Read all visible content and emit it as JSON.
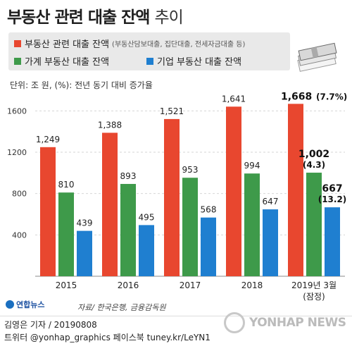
{
  "title": "부동산 관련 대출 잔액",
  "title_suffix": "추이",
  "unit_note": "단위: 조 원, (%): 전년 동기 대비 증가율",
  "legend": [
    {
      "label": "부동산 관련 대출 잔액",
      "note": "(부동산담보대출, 집단대출, 전세자금대출 등)",
      "color": "#e8472f"
    },
    {
      "label": "가계 부동산 대출 잔액",
      "note": "",
      "color": "#3e9a4a"
    },
    {
      "label": "기업 부동산 대출 잔액",
      "note": "",
      "color": "#1f7fd0"
    }
  ],
  "source": "자료/ 한국은행, 금융감독원",
  "logo_text": "연합뉴스",
  "byline": "김영은 기자 / 20190808",
  "social": "트위터 @yonhap_graphics  페이스북 tuney.kr/LeYN1",
  "watermark": "YONHAP NEWS",
  "chart_data": {
    "type": "bar",
    "categories": [
      "2015",
      "2016",
      "2017",
      "2018",
      "2019년 3월"
    ],
    "category_sub": [
      "",
      "",
      "",
      "",
      "(잠정)"
    ],
    "ylim": [
      0,
      1800
    ],
    "yticks": [
      400,
      800,
      1200,
      1600
    ],
    "grid": true,
    "series": [
      {
        "name": "부동산 관련 대출 잔액",
        "color": "#e8472f",
        "values": [
          1249,
          1388,
          1521,
          1641,
          1668
        ],
        "labels": [
          "1,249",
          "1,388",
          "1,521",
          "1,641",
          "1,668"
        ],
        "growth": [
          "",
          "",
          "",
          "",
          "(7.7%)"
        ]
      },
      {
        "name": "가계 부동산 대출 잔액",
        "color": "#3e9a4a",
        "values": [
          810,
          893,
          953,
          994,
          1002
        ],
        "labels": [
          "810",
          "893",
          "953",
          "994",
          "1,002"
        ],
        "growth": [
          "",
          "",
          "",
          "",
          "(4.3)"
        ]
      },
      {
        "name": "기업 부동산 대출 잔액",
        "color": "#1f7fd0",
        "values": [
          439,
          495,
          568,
          647,
          667
        ],
        "labels": [
          "439",
          "495",
          "568",
          "647",
          "667"
        ],
        "growth": [
          "",
          "",
          "",
          "",
          "(13.2)"
        ]
      }
    ]
  }
}
